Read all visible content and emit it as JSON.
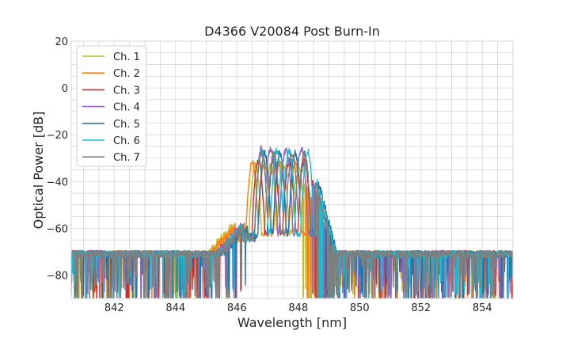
{
  "chart_data": {
    "type": "line",
    "title": "D4366 V20084 Post Burn-In",
    "xlabel": "Wavelength [nm]",
    "ylabel": "Optical Power [dB]",
    "xlim": [
      840.6,
      855.0
    ],
    "ylim": [
      -90,
      20
    ],
    "xticks": [
      842,
      844,
      846,
      848,
      850,
      852,
      854
    ],
    "yticks": [
      -80,
      -60,
      -40,
      -20,
      0,
      20
    ],
    "xtick_labels": [
      "842",
      "844",
      "846",
      "848",
      "850",
      "852",
      "854"
    ],
    "ytick_labels": [
      "−80",
      "−60",
      "−40",
      "−20",
      "0",
      "20"
    ],
    "grid": true,
    "legend_position": "top-left",
    "noise_floor": -71,
    "series": [
      {
        "name": "Ch. 1",
        "color": "#bcbd22",
        "center": 847.0,
        "width": 2.3,
        "peak": -30,
        "peaks": [
          846.6,
          847.1,
          847.5,
          848.0
        ]
      },
      {
        "name": "Ch. 2",
        "color": "#ff7f0e",
        "center": 847.1,
        "width": 2.3,
        "peak": -29,
        "peaks": [
          846.5,
          846.9,
          847.4,
          847.9
        ]
      },
      {
        "name": "Ch. 3",
        "color": "#d62728",
        "center": 847.3,
        "width": 2.3,
        "peak": -28,
        "peaks": [
          846.7,
          847.2,
          847.7,
          848.2
        ]
      },
      {
        "name": "Ch. 4",
        "color": "#9467bd",
        "center": 847.3,
        "width": 2.3,
        "peak": -23,
        "peaks": [
          846.8,
          847.1,
          847.6,
          848.1
        ]
      },
      {
        "name": "Ch. 5",
        "color": "#1f77b4",
        "center": 847.5,
        "width": 2.3,
        "peak": -25,
        "peaks": [
          846.9,
          847.4,
          847.9,
          848.2
        ]
      },
      {
        "name": "Ch. 6",
        "color": "#17becf",
        "center": 847.4,
        "width": 2.4,
        "peak": -24,
        "peaks": [
          846.8,
          847.3,
          847.7,
          848.3
        ]
      },
      {
        "name": "Ch. 7",
        "color": "#7f7f7f",
        "center": 847.4,
        "width": 2.3,
        "peak": -25,
        "peaks": [
          846.8,
          847.2,
          847.8,
          848.2
        ]
      }
    ]
  }
}
